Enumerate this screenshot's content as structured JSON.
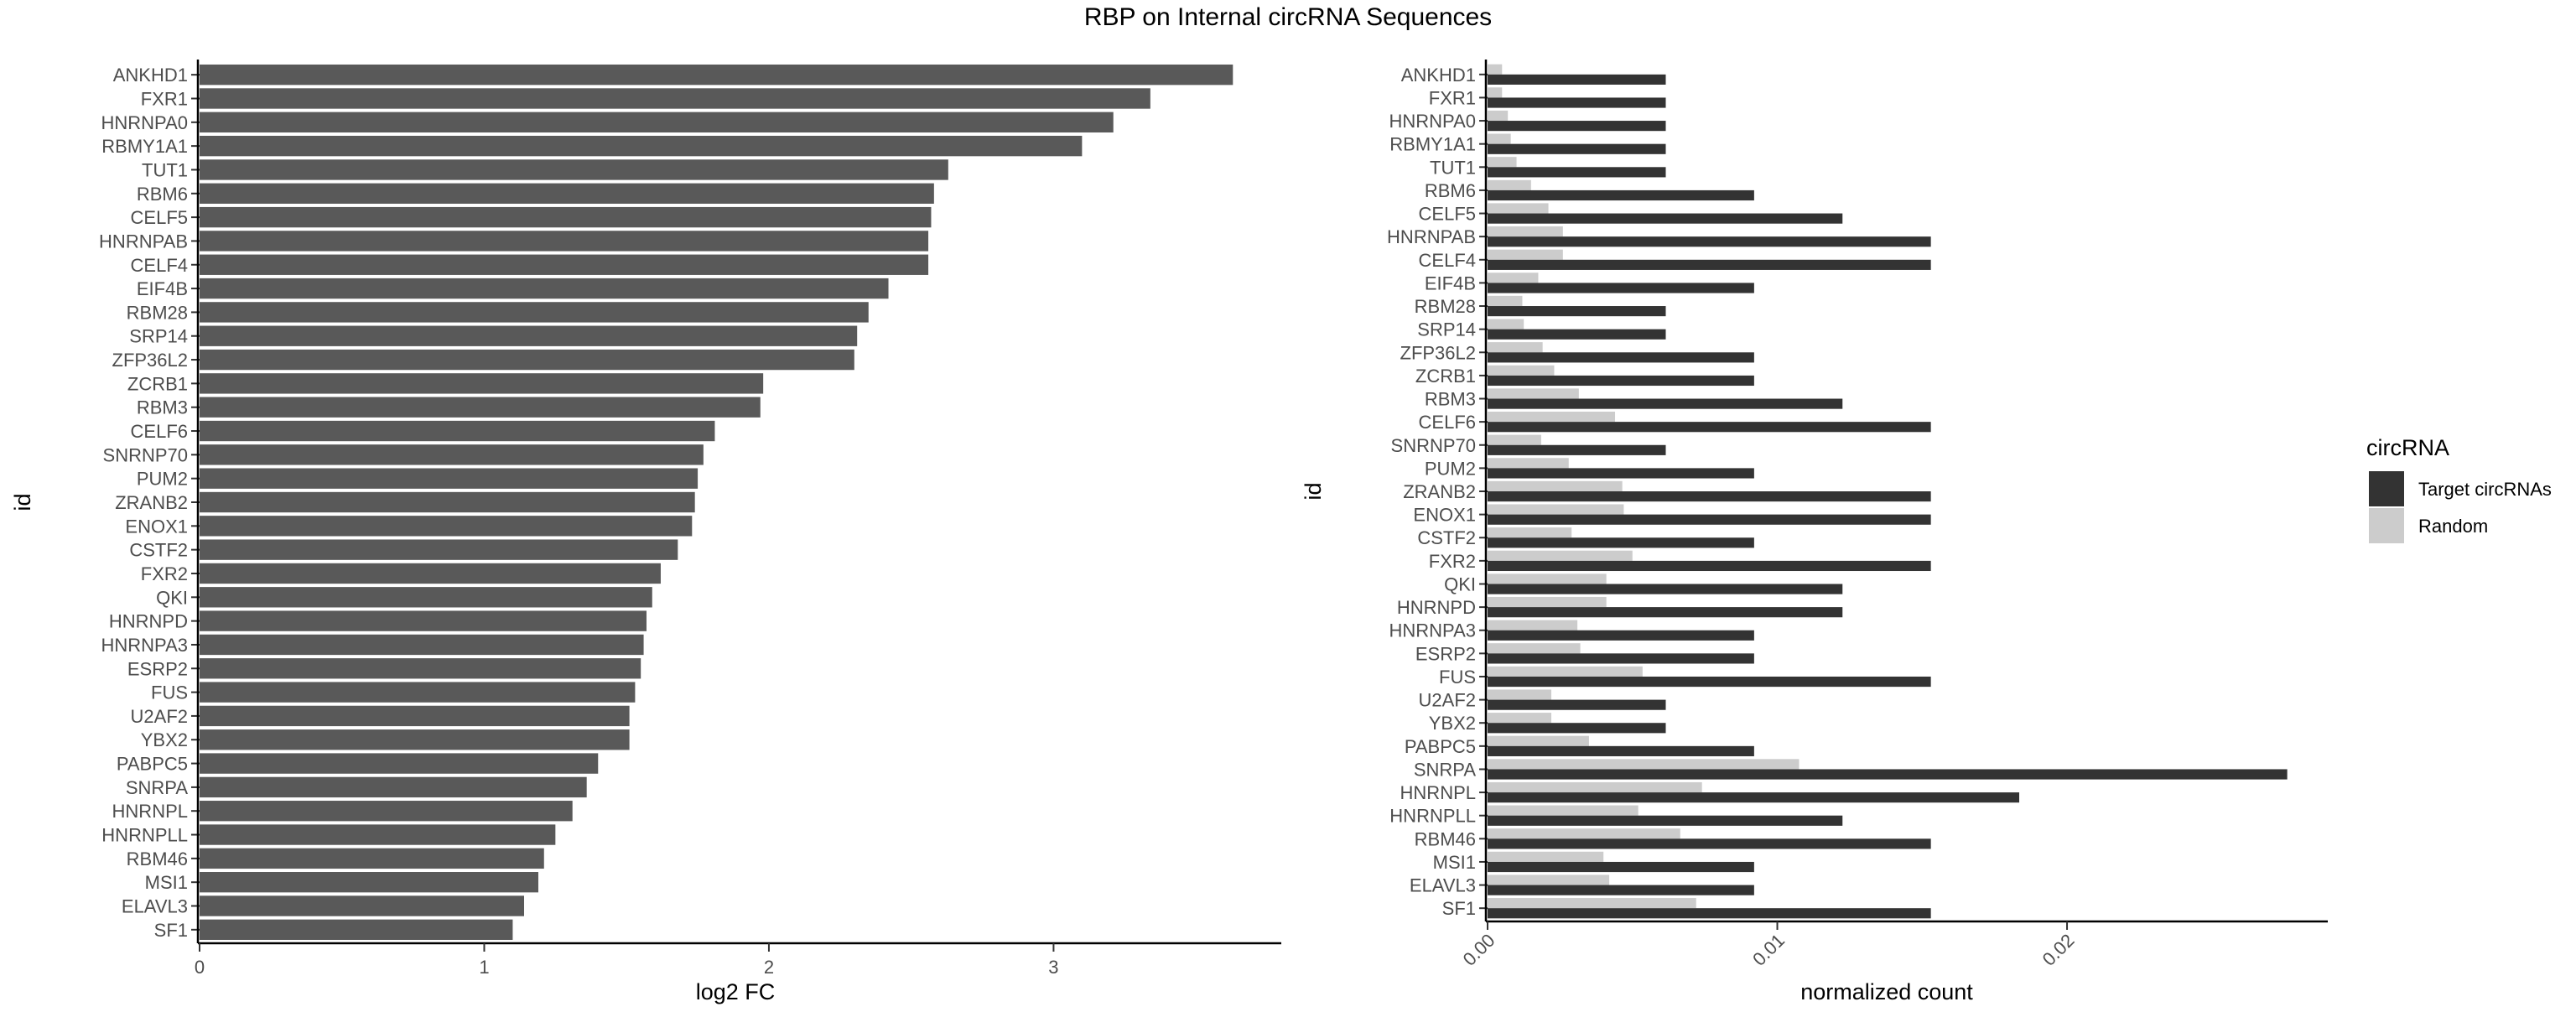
{
  "title": "RBP on Internal circRNA Sequences",
  "chart_data": [
    {
      "type": "bar",
      "orientation": "horizontal",
      "xlabel": "log2 FC",
      "ylabel": "id",
      "xlim": [
        0,
        3.8
      ],
      "xticks": [
        "0",
        "1",
        "2",
        "3"
      ],
      "grid": false,
      "color": "#595959",
      "categories": [
        "ANKHD1",
        "FXR1",
        "HNRNPA0",
        "RBMY1A1",
        "TUT1",
        "RBM6",
        "CELF5",
        "HNRNPAB",
        "CELF4",
        "EIF4B",
        "RBM28",
        "SRP14",
        "ZFP36L2",
        "ZCRB1",
        "RBM3",
        "CELF6",
        "SNRNP70",
        "PUM2",
        "ZRANB2",
        "ENOX1",
        "CSTF2",
        "FXR2",
        "QKI",
        "HNRNPD",
        "HNRNPA3",
        "ESRP2",
        "FUS",
        "U2AF2",
        "YBX2",
        "PABPC5",
        "SNRPA",
        "HNRNPL",
        "HNRNPLL",
        "RBM46",
        "MSI1",
        "ELAVL3",
        "SF1"
      ],
      "values": [
        3.63,
        3.34,
        3.21,
        3.1,
        2.63,
        2.58,
        2.57,
        2.56,
        2.56,
        2.42,
        2.35,
        2.31,
        2.3,
        1.98,
        1.97,
        1.81,
        1.77,
        1.75,
        1.74,
        1.73,
        1.68,
        1.62,
        1.59,
        1.57,
        1.56,
        1.55,
        1.53,
        1.51,
        1.51,
        1.4,
        1.36,
        1.31,
        1.25,
        1.21,
        1.19,
        1.14,
        1.1
      ]
    },
    {
      "type": "bar",
      "orientation": "horizontal",
      "xlabel": "normalized count",
      "ylabel": "id",
      "xlim": [
        0,
        0.029
      ],
      "xticks": [
        "0.00",
        "0.01",
        "0.02"
      ],
      "grid": false,
      "legend": {
        "title": "circRNA",
        "position": "right"
      },
      "categories": [
        "ANKHD1",
        "FXR1",
        "HNRNPA0",
        "RBMY1A1",
        "TUT1",
        "RBM6",
        "CELF5",
        "HNRNPAB",
        "CELF4",
        "EIF4B",
        "RBM28",
        "SRP14",
        "ZFP36L2",
        "ZCRB1",
        "RBM3",
        "CELF6",
        "SNRNP70",
        "PUM2",
        "ZRANB2",
        "ENOX1",
        "CSTF2",
        "FXR2",
        "QKI",
        "HNRNPD",
        "HNRNPA3",
        "ESRP2",
        "FUS",
        "U2AF2",
        "YBX2",
        "PABPC5",
        "SNRPA",
        "HNRNPL",
        "HNRNPLL",
        "RBM46",
        "MSI1",
        "ELAVL3",
        "SF1"
      ],
      "series": [
        {
          "name": "Target circRNAs",
          "color": "#333333",
          "values": [
            0.00615,
            0.00615,
            0.00615,
            0.00615,
            0.00615,
            0.0092,
            0.01225,
            0.0153,
            0.0153,
            0.0092,
            0.00615,
            0.00615,
            0.0092,
            0.0092,
            0.01225,
            0.0153,
            0.00615,
            0.0092,
            0.0153,
            0.0153,
            0.0092,
            0.0153,
            0.01225,
            0.01225,
            0.0092,
            0.0092,
            0.0153,
            0.00615,
            0.00615,
            0.0092,
            0.0276,
            0.01835,
            0.01225,
            0.0153,
            0.0092,
            0.0092,
            0.0153
          ]
        },
        {
          "name": "Random",
          "color": "#cccccc",
          "values": [
            0.0005,
            0.0005,
            0.0007,
            0.0008,
            0.001,
            0.0015,
            0.0021,
            0.0026,
            0.0026,
            0.00175,
            0.0012,
            0.00125,
            0.0019,
            0.0023,
            0.00315,
            0.0044,
            0.00185,
            0.0028,
            0.00465,
            0.0047,
            0.0029,
            0.005,
            0.0041,
            0.0041,
            0.0031,
            0.0032,
            0.00535,
            0.0022,
            0.0022,
            0.0035,
            0.01075,
            0.0074,
            0.0052,
            0.00665,
            0.004,
            0.0042,
            0.0072
          ]
        }
      ]
    }
  ]
}
